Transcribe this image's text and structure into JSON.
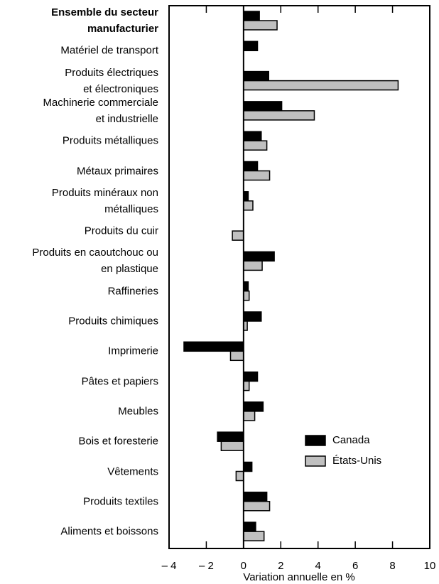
{
  "chart_data": {
    "type": "hbar",
    "xlabel": "Variation annuelle en %",
    "categories": [
      "Ensemble du secteur\nmanufacturier",
      "Matériel de transport",
      "Produits électriques\net électroniques",
      "Machinerie commerciale\net industrielle",
      "Produits métalliques",
      "Métaux primaires",
      "Produits minéraux non\nmétalliques",
      "Produits du cuir",
      "Produits en caoutchouc ou\nen plastique",
      "Raffineries",
      "Produits chimiques",
      "Imprimerie",
      "Pâtes et papiers",
      "Meubles",
      "Bois et foresterie",
      "Vêtements",
      "Produits textiles",
      "Aliments et boissons"
    ],
    "series": [
      {
        "name": "Canada",
        "color": "#000000",
        "values": [
          0.85,
          0.75,
          1.35,
          2.05,
          0.95,
          0.75,
          0.25,
          null,
          1.65,
          0.25,
          0.95,
          -3.2,
          0.75,
          1.05,
          -1.4,
          0.45,
          1.25,
          0.65
        ]
      },
      {
        "name": "États-Unis",
        "color": "#c0c0c0",
        "values": [
          1.8,
          null,
          8.3,
          3.8,
          1.25,
          1.4,
          0.5,
          -0.6,
          1.0,
          0.3,
          0.2,
          -0.7,
          0.3,
          0.6,
          -1.2,
          -0.4,
          1.4,
          1.1
        ]
      }
    ],
    "xlim": [
      -4,
      10
    ],
    "xticks": [
      {
        "value": -4,
        "label": "– 4"
      },
      {
        "value": -2,
        "label": "– 2"
      },
      0,
      2,
      4,
      6,
      8,
      10
    ],
    "legend": "lower right"
  }
}
